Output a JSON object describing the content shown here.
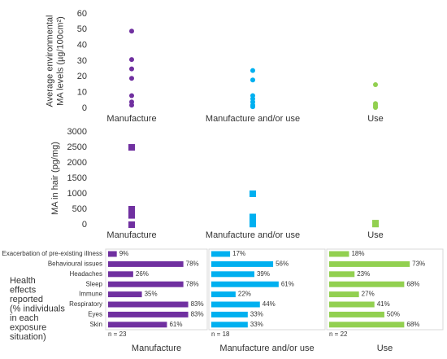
{
  "chart_data": [
    {
      "type": "strip",
      "marker": "circle",
      "ylabel": [
        "Average environmental",
        "MA levels (µg/100cm²)"
      ],
      "categories": [
        "Manufacture",
        "Manufacture and/or use",
        "Use"
      ],
      "colors": [
        "#7030a0",
        "#00b0f0",
        "#92d050"
      ],
      "values": [
        [
          49,
          31,
          25,
          19,
          8,
          4,
          2
        ],
        [
          24,
          18,
          8,
          6,
          4,
          2,
          1
        ],
        [
          15,
          3,
          2,
          1,
          0.5
        ]
      ],
      "ylim": [
        0,
        60
      ],
      "yticks": [
        0,
        10,
        20,
        30,
        40,
        50,
        60
      ]
    },
    {
      "type": "strip",
      "marker": "square",
      "ylabel": [
        "MA in hair (pg/mg)"
      ],
      "categories": [
        "Manufacture",
        "Manufacture and/or use",
        "Use"
      ],
      "colors": [
        "#7030a0",
        "#00b0f0",
        "#92d050"
      ],
      "values": [
        [
          2500,
          500,
          400,
          300,
          0
        ],
        [
          1000,
          250,
          150,
          80,
          20
        ],
        [
          50,
          20
        ]
      ],
      "ylim": [
        0,
        3000
      ],
      "yticks": [
        0,
        500,
        1000,
        1500,
        2000,
        2500,
        3000
      ]
    },
    {
      "type": "hbar",
      "ylabel": [
        "Health",
        "effects",
        "reported",
        "(% individuals",
        "in each",
        "exposure",
        "situation)"
      ],
      "categories": [
        "Exacerbation of pre-existing illness",
        "Behavioural issues",
        "Headaches",
        "Sleep",
        "Immune",
        "Respiratory",
        "Eyes",
        "Skin"
      ],
      "xlim": [
        0,
        100
      ],
      "series": [
        {
          "name": "Manufacture",
          "color": "#7030a0",
          "n_label": "n = 23",
          "values": [
            9,
            78,
            26,
            78,
            35,
            83,
            83,
            61
          ],
          "value_labels": [
            "9%",
            "78%",
            "26%",
            "78%",
            "35%",
            "83%",
            "83%",
            "61%"
          ]
        },
        {
          "name": "Manufacture and/or use",
          "color": "#00b0f0",
          "n_label": "n = 18",
          "values": [
            17,
            56,
            39,
            61,
            22,
            44,
            33,
            33
          ],
          "value_labels": [
            "17%",
            "56%",
            "39%",
            "61%",
            "22%",
            "44%",
            "33%",
            "33%"
          ]
        },
        {
          "name": "Use",
          "color": "#92d050",
          "n_label": "n = 22",
          "values": [
            18,
            73,
            23,
            68,
            27,
            41,
            50,
            68
          ],
          "value_labels": [
            "18%",
            "73%",
            "23%",
            "68%",
            "27%",
            "41%",
            "50%",
            "68%"
          ]
        }
      ]
    }
  ]
}
